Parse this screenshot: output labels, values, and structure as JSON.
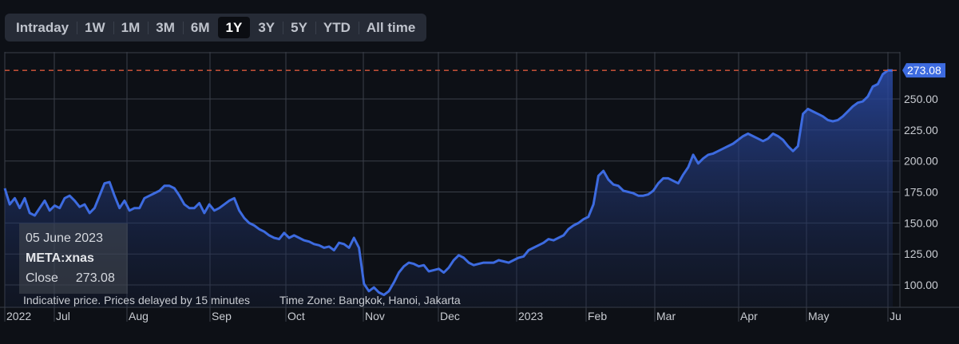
{
  "range_buttons": [
    {
      "label": "Intraday",
      "active": false
    },
    {
      "label": "1W",
      "active": false
    },
    {
      "label": "1M",
      "active": false
    },
    {
      "label": "3M",
      "active": false
    },
    {
      "label": "6M",
      "active": false
    },
    {
      "label": "1Y",
      "active": true
    },
    {
      "label": "3Y",
      "active": false
    },
    {
      "label": "5Y",
      "active": false
    },
    {
      "label": "YTD",
      "active": false
    },
    {
      "label": "All time",
      "active": false
    }
  ],
  "tooltip": {
    "date": "05 June 2023",
    "symbol": "META:xnas",
    "close_label": "Close",
    "close_value": "273.08"
  },
  "footer_note": "Indicative price. Prices delayed by 15 minutes",
  "timezone_note": "Time Zone: Bangkok, Hanoi, Jakarta",
  "colors": {
    "line": "#3d6be0",
    "fill_top": "#2a4aa6",
    "last_price_line": "#d9583b",
    "last_price_badge": "#3d6be0"
  },
  "chart_data": {
    "type": "area",
    "last_price_label": "273.08",
    "y_ticks": [
      "100.00",
      "125.00",
      "150.00",
      "175.00",
      "200.00",
      "225.00",
      "250.00"
    ],
    "ylim": [
      82,
      288
    ],
    "x_ticks": [
      "2022",
      "Jul",
      "Aug",
      "Sep",
      "Oct",
      "Nov",
      "Dec",
      "2023",
      "Feb",
      "Mar",
      "Apr",
      "May",
      "Ju"
    ],
    "values": [
      178,
      165,
      170,
      162,
      170,
      158,
      156,
      162,
      168,
      160,
      164,
      162,
      170,
      172,
      168,
      163,
      165,
      158,
      162,
      172,
      182,
      183,
      172,
      162,
      168,
      160,
      162,
      162,
      170,
      172,
      174,
      176,
      180,
      180,
      178,
      172,
      165,
      162,
      162,
      166,
      158,
      165,
      160,
      162,
      165,
      168,
      170,
      160,
      154,
      150,
      148,
      145,
      143,
      140,
      138,
      137,
      142,
      138,
      140,
      138,
      136,
      135,
      133,
      132,
      130,
      131,
      128,
      134,
      133,
      130,
      138,
      130,
      101,
      95,
      98,
      94,
      92,
      95,
      102,
      110,
      115,
      118,
      117,
      115,
      116,
      111,
      112,
      113,
      110,
      114,
      120,
      124,
      122,
      118,
      116,
      117,
      118,
      118,
      118,
      120,
      119,
      118,
      120,
      122,
      123,
      128,
      130,
      132,
      134,
      137,
      136,
      138,
      140,
      145,
      148,
      150,
      153,
      155,
      165,
      188,
      192,
      185,
      181,
      180,
      176,
      175,
      174,
      172,
      172,
      173,
      176,
      182,
      186,
      186,
      184,
      182,
      189,
      195,
      205,
      198,
      202,
      205,
      206,
      208,
      210,
      212,
      214,
      217,
      220,
      222,
      220,
      218,
      216,
      218,
      222,
      220,
      217,
      212,
      208,
      212,
      238,
      242,
      240,
      238,
      236,
      233,
      232,
      233,
      236,
      240,
      244,
      247,
      248,
      252,
      260,
      262,
      270,
      273,
      273
    ]
  }
}
